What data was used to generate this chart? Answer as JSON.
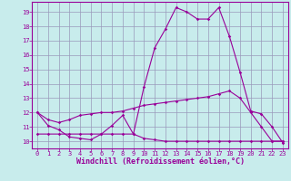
{
  "xlabel": "Windchill (Refroidissement éolien,°C)",
  "background_color": "#c8ecec",
  "line_color": "#990099",
  "grid_color": "#9999bb",
  "xlim": [
    -0.5,
    23.5
  ],
  "ylim": [
    9.5,
    19.7
  ],
  "xticks": [
    0,
    1,
    2,
    3,
    4,
    5,
    6,
    7,
    8,
    9,
    10,
    11,
    12,
    13,
    14,
    15,
    16,
    17,
    18,
    19,
    20,
    21,
    22,
    23
  ],
  "yticks": [
    10,
    11,
    12,
    13,
    14,
    15,
    16,
    17,
    18,
    19
  ],
  "curve1_x": [
    0,
    1,
    2,
    3,
    4,
    5,
    6,
    7,
    8,
    9,
    10,
    11,
    12,
    13,
    14,
    15,
    16,
    17,
    18,
    19,
    20,
    21,
    22,
    23
  ],
  "curve1_y": [
    12.0,
    11.1,
    10.8,
    10.3,
    10.2,
    10.1,
    10.5,
    11.1,
    11.8,
    10.5,
    13.8,
    16.5,
    17.8,
    19.3,
    19.0,
    18.5,
    18.5,
    19.3,
    17.3,
    14.8,
    12.1,
    11.9,
    11.0,
    9.9
  ],
  "curve2_x": [
    0,
    1,
    2,
    3,
    4,
    5,
    6,
    7,
    8,
    9,
    10,
    11,
    12,
    13,
    14,
    15,
    16,
    17,
    18,
    19,
    20,
    21,
    22,
    23
  ],
  "curve2_y": [
    12.0,
    11.5,
    11.3,
    11.5,
    11.8,
    11.9,
    12.0,
    12.0,
    12.1,
    12.3,
    12.5,
    12.6,
    12.7,
    12.8,
    12.9,
    13.0,
    13.1,
    13.3,
    13.5,
    13.0,
    12.0,
    11.0,
    10.0,
    10.0
  ],
  "curve3_x": [
    0,
    1,
    2,
    3,
    4,
    5,
    6,
    7,
    8,
    9,
    10,
    11,
    12,
    13,
    14,
    15,
    16,
    17,
    18,
    19,
    20,
    21,
    22,
    23
  ],
  "curve3_y": [
    10.5,
    10.5,
    10.5,
    10.5,
    10.5,
    10.5,
    10.5,
    10.5,
    10.5,
    10.5,
    10.2,
    10.1,
    10.0,
    10.0,
    10.0,
    10.0,
    10.0,
    10.0,
    10.0,
    10.0,
    10.0,
    10.0,
    10.0,
    10.0
  ],
  "tick_fontsize": 5.0,
  "xlabel_fontsize": 6.0
}
